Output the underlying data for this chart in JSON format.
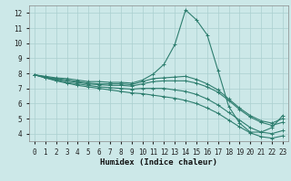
{
  "title": "",
  "xlabel": "Humidex (Indice chaleur)",
  "ylabel": "",
  "xlim": [
    -0.5,
    23.5
  ],
  "ylim": [
    3.5,
    12.5
  ],
  "yticks": [
    4,
    5,
    6,
    7,
    8,
    9,
    10,
    11,
    12
  ],
  "xticks": [
    0,
    1,
    2,
    3,
    4,
    5,
    6,
    7,
    8,
    9,
    10,
    11,
    12,
    13,
    14,
    15,
    16,
    17,
    18,
    19,
    20,
    21,
    22,
    23
  ],
  "background_color": "#cce8e8",
  "grid_color": "#aacfcf",
  "line_color": "#2d7d6e",
  "figsize": [
    3.2,
    2.0
  ],
  "dpi": 100,
  "lines": [
    {
      "x": [
        0,
        1,
        2,
        3,
        4,
        5,
        6,
        7,
        8,
        9,
        10,
        11,
        12,
        13,
        14,
        15,
        16,
        17,
        18,
        19,
        20,
        21,
        22,
        23
      ],
      "y": [
        7.9,
        7.8,
        7.7,
        7.65,
        7.55,
        7.45,
        7.45,
        7.4,
        7.4,
        7.35,
        7.55,
        7.95,
        8.6,
        9.9,
        12.2,
        11.55,
        10.55,
        8.2,
        5.8,
        4.7,
        4.1,
        4.1,
        4.4,
        5.2
      ]
    },
    {
      "x": [
        0,
        1,
        2,
        3,
        4,
        5,
        6,
        7,
        8,
        9,
        10,
        11,
        12,
        13,
        14,
        15,
        16,
        17,
        18,
        19,
        20,
        21,
        22,
        23
      ],
      "y": [
        7.9,
        7.75,
        7.65,
        7.55,
        7.45,
        7.35,
        7.3,
        7.3,
        7.3,
        7.25,
        7.45,
        7.65,
        7.7,
        7.75,
        7.8,
        7.6,
        7.3,
        6.9,
        6.3,
        5.7,
        5.2,
        4.85,
        4.7,
        5.0
      ]
    },
    {
      "x": [
        0,
        1,
        2,
        3,
        4,
        5,
        6,
        7,
        8,
        9,
        10,
        11,
        12,
        13,
        14,
        15,
        16,
        17,
        18,
        19,
        20,
        21,
        22,
        23
      ],
      "y": [
        7.9,
        7.75,
        7.6,
        7.5,
        7.4,
        7.3,
        7.25,
        7.2,
        7.2,
        7.15,
        7.3,
        7.45,
        7.5,
        7.5,
        7.5,
        7.35,
        7.1,
        6.75,
        6.2,
        5.6,
        5.1,
        4.75,
        4.55,
        4.75
      ]
    },
    {
      "x": [
        0,
        1,
        2,
        3,
        4,
        5,
        6,
        7,
        8,
        9,
        10,
        11,
        12,
        13,
        14,
        15,
        16,
        17,
        18,
        19,
        20,
        21,
        22,
        23
      ],
      "y": [
        7.9,
        7.7,
        7.55,
        7.4,
        7.3,
        7.2,
        7.1,
        7.05,
        7.0,
        6.95,
        7.0,
        7.0,
        7.0,
        6.9,
        6.8,
        6.6,
        6.3,
        5.9,
        5.4,
        4.9,
        4.4,
        4.1,
        4.0,
        4.2
      ]
    },
    {
      "x": [
        0,
        1,
        2,
        3,
        4,
        5,
        6,
        7,
        8,
        9,
        10,
        11,
        12,
        13,
        14,
        15,
        16,
        17,
        18,
        19,
        20,
        21,
        22,
        23
      ],
      "y": [
        7.9,
        7.7,
        7.5,
        7.35,
        7.2,
        7.1,
        7.0,
        6.9,
        6.8,
        6.7,
        6.65,
        6.55,
        6.45,
        6.35,
        6.2,
        6.0,
        5.7,
        5.35,
        4.9,
        4.45,
        4.05,
        3.8,
        3.7,
        3.85
      ]
    }
  ]
}
